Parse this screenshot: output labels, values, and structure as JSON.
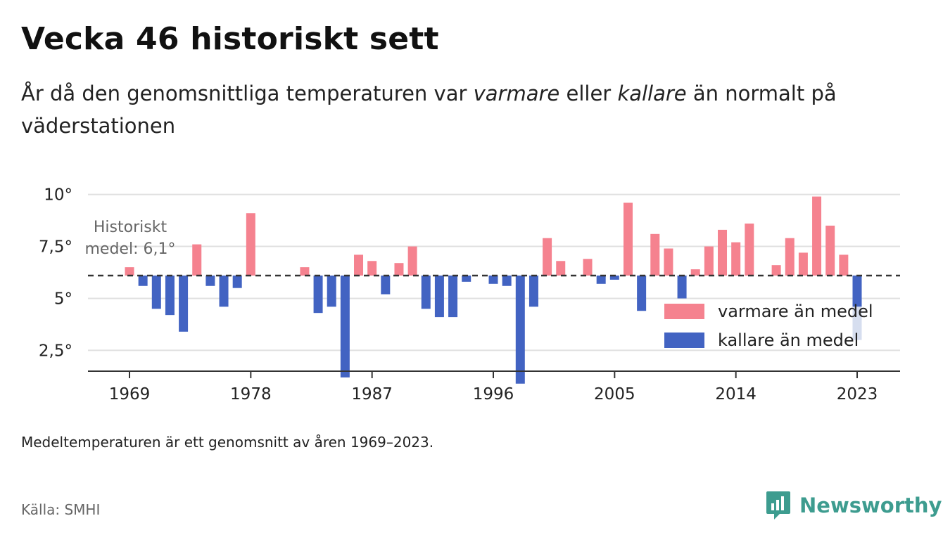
{
  "header": {
    "title": "Vecka 46 historiskt sett",
    "subtitle_part1": "År då den genomsnittliga temperaturen var ",
    "subtitle_warm": "varmare",
    "subtitle_part2": " eller ",
    "subtitle_cold": "kallare",
    "subtitle_part3": " än normalt på väderstationen"
  },
  "footer": {
    "note": "Medeltemperaturen är ett genomsnitt av åren 1969–2023.",
    "source": "Källa: SMHI",
    "brand": "Newsworthy"
  },
  "colors": {
    "warm": "#f5828f",
    "cold": "#4263c2",
    "partial": "#d6deef",
    "brand": "#3d9c8f"
  },
  "chart_data": {
    "type": "bar",
    "baseline": 6.1,
    "baseline_label_line1": "Historiskt",
    "baseline_label_line2": "medel: 6,1°",
    "ylim": [
      1.5,
      10.9
    ],
    "yticks": [
      2.5,
      5,
      7.5,
      10
    ],
    "ytick_labels": [
      "2,5°",
      "5°",
      "7,5°",
      "10°"
    ],
    "xticks": [
      1969,
      1978,
      1987,
      1996,
      2005,
      2014,
      2023
    ],
    "xtick_labels": [
      "1969",
      "1978",
      "1987",
      "1996",
      "2005",
      "2014",
      "2023"
    ],
    "legend": {
      "position": "bottom-right",
      "warm_label": "varmare än medel",
      "cold_label": "kallare än medel"
    },
    "years": [
      1969,
      1970,
      1971,
      1972,
      1973,
      1974,
      1975,
      1976,
      1977,
      1978,
      1979,
      1980,
      1981,
      1982,
      1983,
      1984,
      1985,
      1986,
      1987,
      1988,
      1989,
      1990,
      1991,
      1992,
      1993,
      1994,
      1995,
      1996,
      1997,
      1998,
      1999,
      2000,
      2001,
      2002,
      2003,
      2004,
      2005,
      2006,
      2007,
      2008,
      2009,
      2010,
      2011,
      2012,
      2013,
      2014,
      2015,
      2016,
      2017,
      2018,
      2019,
      2020,
      2021,
      2022,
      2023
    ],
    "values": [
      6.5,
      5.6,
      4.5,
      4.2,
      3.4,
      7.6,
      5.6,
      4.6,
      5.5,
      9.1,
      null,
      null,
      null,
      6.5,
      4.3,
      4.6,
      1.2,
      7.1,
      6.8,
      5.2,
      6.7,
      7.5,
      4.5,
      4.1,
      4.1,
      5.8,
      null,
      5.7,
      5.6,
      0.9,
      4.6,
      7.9,
      6.8,
      null,
      6.9,
      5.7,
      5.9,
      9.6,
      4.4,
      8.1,
      7.4,
      5.0,
      6.4,
      7.5,
      8.3,
      7.7,
      8.6,
      null,
      6.6,
      7.9,
      7.2,
      9.9,
      8.5,
      7.1,
      4.6
    ],
    "partial_range_2023": [
      3.0,
      4.6
    ]
  }
}
